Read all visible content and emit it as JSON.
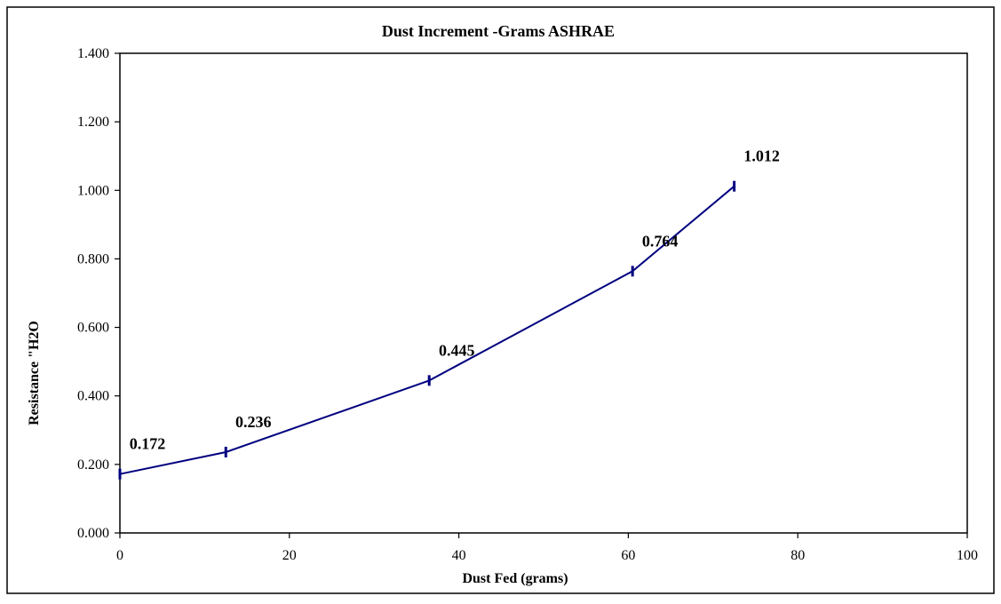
{
  "chart_data": {
    "type": "line",
    "title": "Dust Increment -Grams ASHRAE",
    "xlabel": "Dust Fed (grams)",
    "ylabel": "Resistance \"H2O",
    "xlim": [
      0,
      100
    ],
    "ylim": [
      0,
      1.4
    ],
    "x_ticks": [
      "0",
      "20",
      "40",
      "60",
      "80",
      "100"
    ],
    "y_ticks": [
      "0.000",
      "0.200",
      "0.400",
      "0.600",
      "0.800",
      "1.000",
      "1.200",
      "1.400"
    ],
    "grid": false,
    "legend": "none",
    "line_color": "#000080",
    "series": [
      {
        "x": [
          0,
          12.5,
          36.5,
          60.5,
          72.5
        ],
        "values": [
          0.172,
          0.236,
          0.445,
          0.764,
          1.012
        ],
        "labels": [
          "0.172",
          "0.236",
          "0.445",
          "0.764",
          "1.012"
        ]
      }
    ]
  }
}
